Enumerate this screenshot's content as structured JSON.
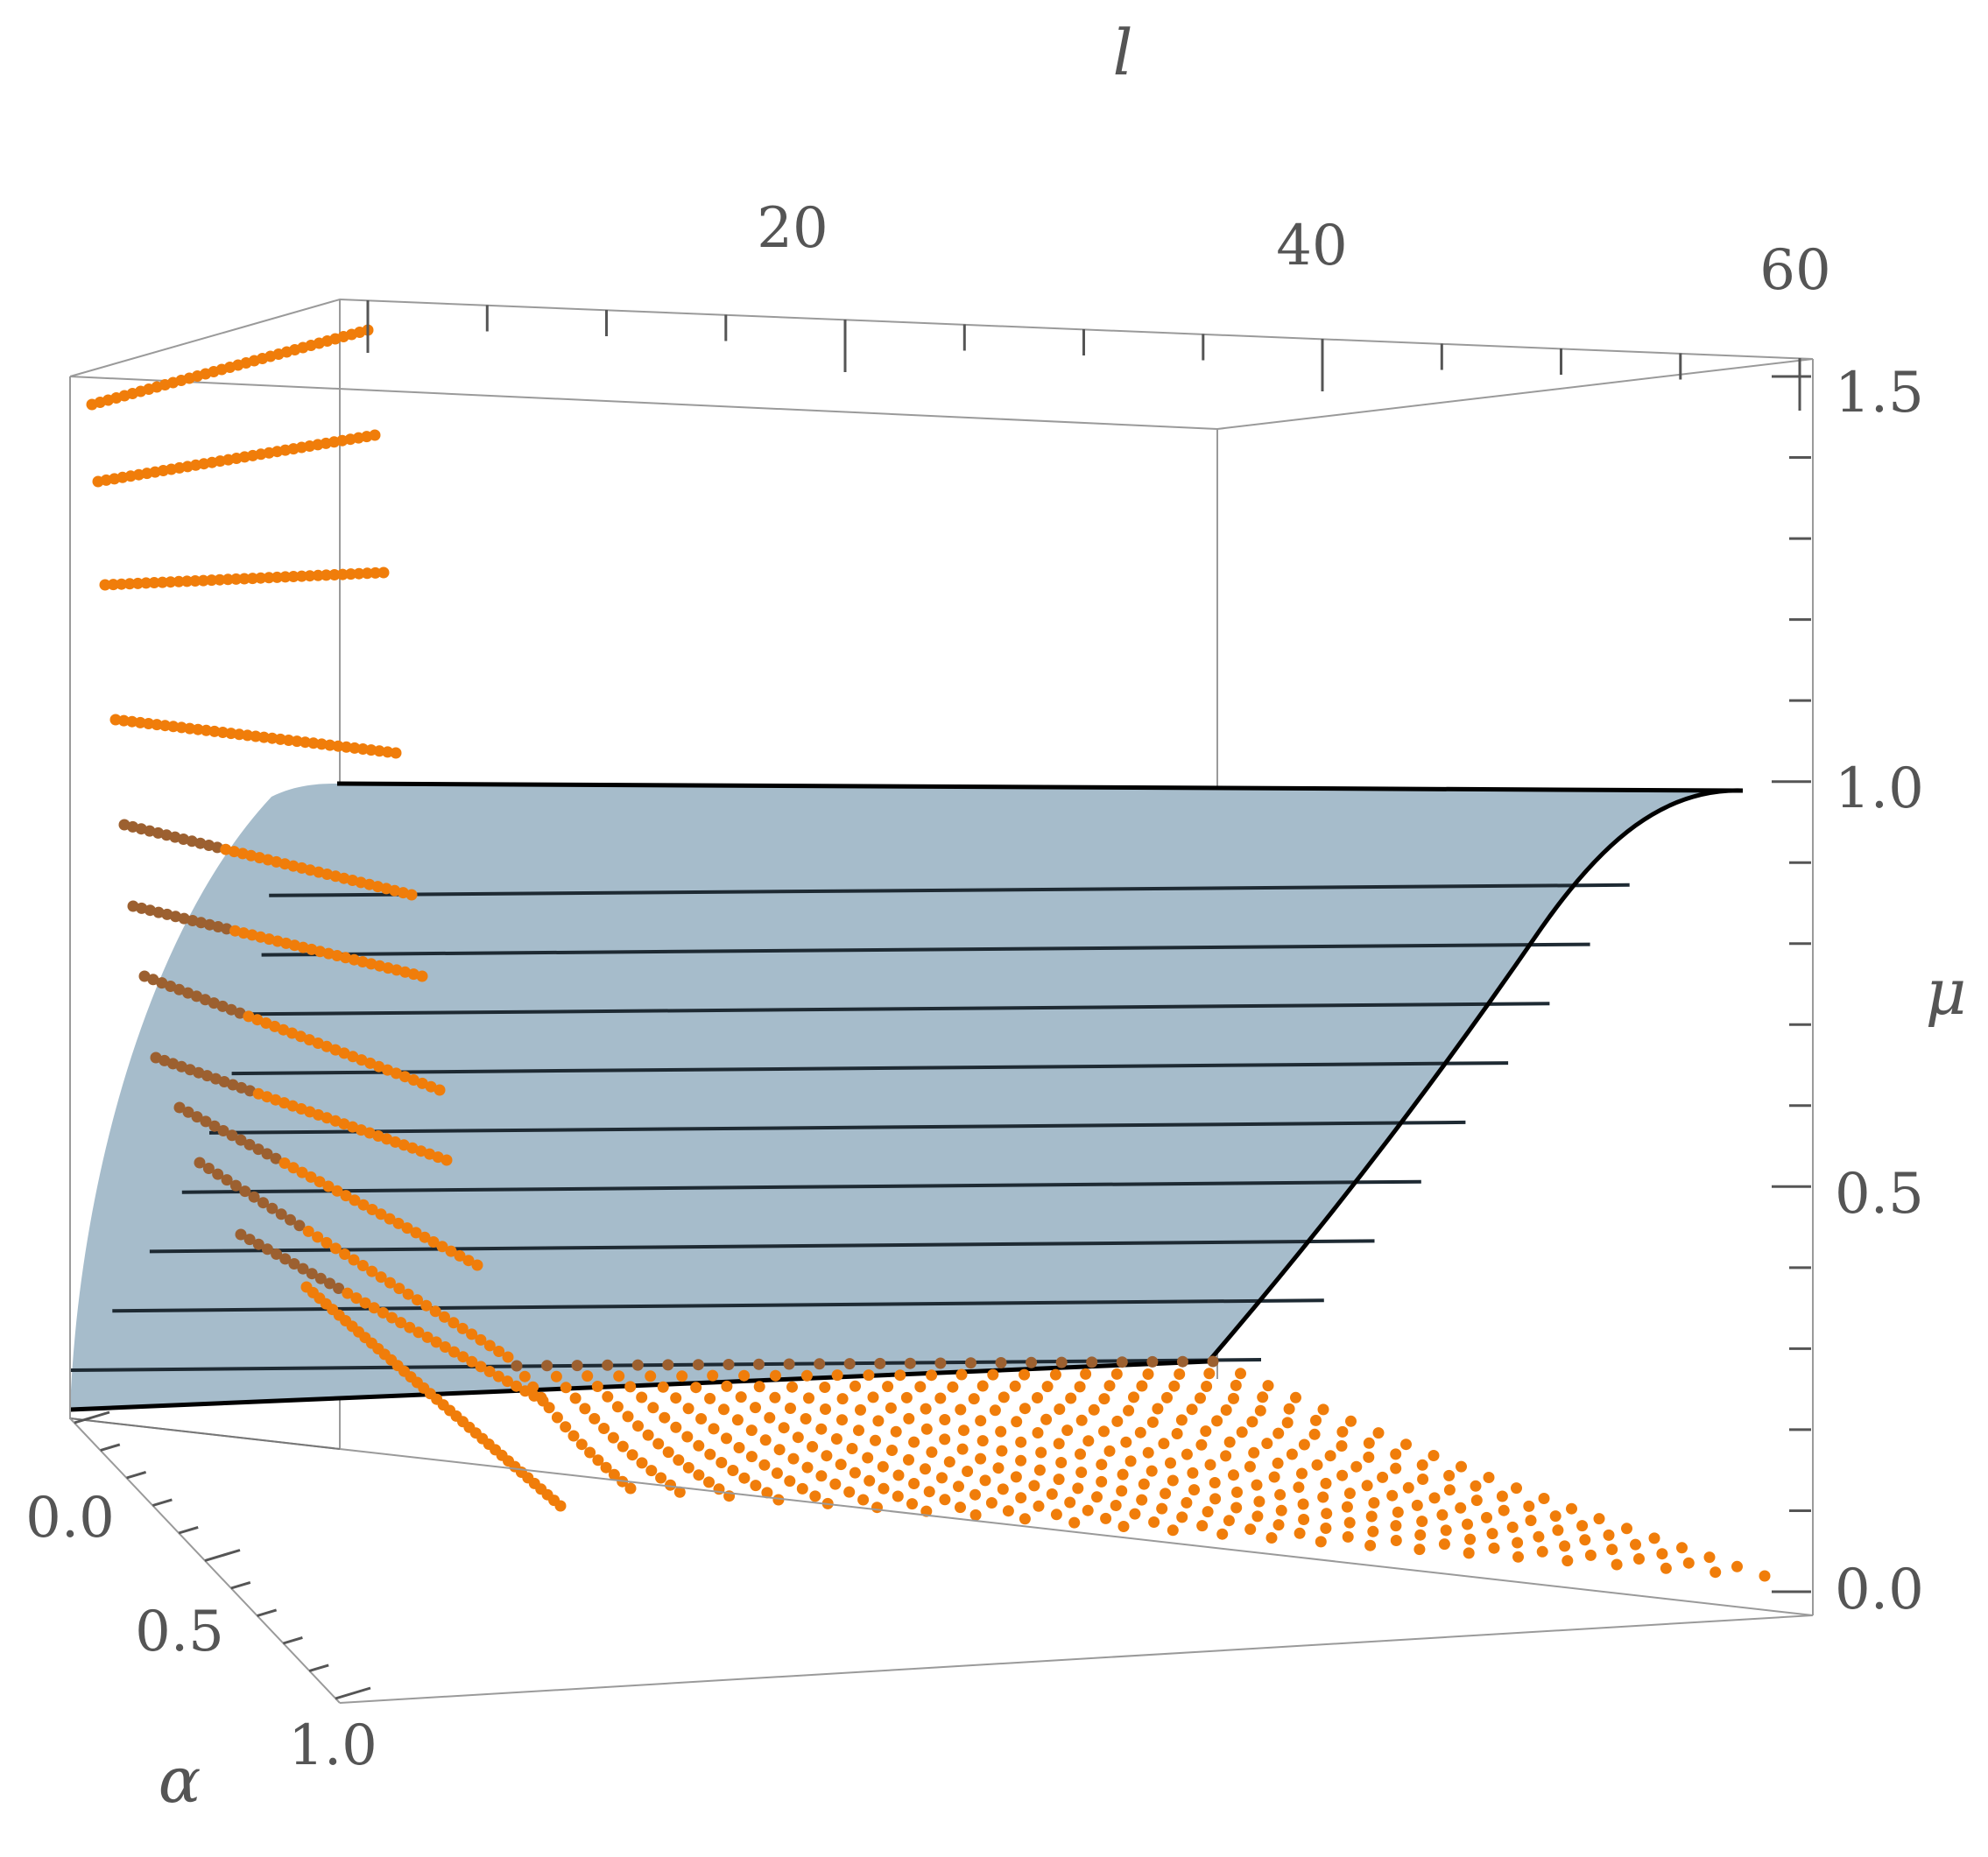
{
  "chart_data": {
    "type": "scatter",
    "subtype": "3d-surface-with-points",
    "x_axis": {
      "label": "l",
      "range": [
        0,
        60
      ],
      "ticks": [
        20,
        40,
        60
      ],
      "tick_labels": [
        "20",
        "40",
        "60"
      ]
    },
    "y_axis": {
      "label": "α",
      "range": [
        0,
        1
      ],
      "ticks": [
        0,
        0.5,
        1
      ],
      "tick_labels": [
        "0.0",
        "0.5",
        "1.0"
      ]
    },
    "z_axis": {
      "label": "μ",
      "range": [
        0,
        1.5
      ],
      "ticks": [
        0,
        0.5,
        1,
        1.5
      ],
      "tick_labels": [
        "0.0",
        "0.5",
        "1.0",
        "1.5"
      ]
    },
    "surface": {
      "color": "#a6bccb",
      "mesh_color": "#1e2a33",
      "mesh_z": [
        0.1,
        0.2,
        0.3,
        0.4,
        0.5,
        0.6,
        0.7,
        0.8,
        0.9
      ],
      "z_max": 1.0
    },
    "series": [
      {
        "color": "#f07d0a",
        "alpha_rows": [
          0.0,
          0.08,
          0.16,
          0.24,
          0.32,
          0.4,
          0.48,
          0.56,
          0.64,
          0.72,
          0.8,
          0.88,
          1.0
        ],
        "mu_levels": [
          1.4,
          1.3,
          1.2,
          1.05,
          0.95,
          0.85,
          0.75,
          0.65,
          0.55,
          0.45,
          0.35,
          0.25,
          0.0
        ]
      }
    ],
    "box": true,
    "grid": false
  }
}
